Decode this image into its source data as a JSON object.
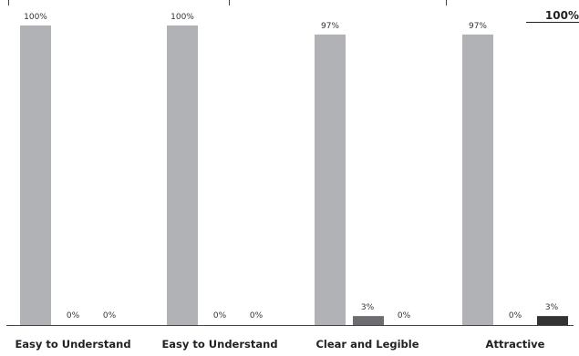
{
  "chart_data": {
    "type": "bar",
    "title": "",
    "xlabel": "",
    "ylabel": "",
    "ylim": [
      0,
      100
    ],
    "grid": false,
    "categories": [
      "Easy to Understand",
      "Easy to Understand",
      "Clear and Legible",
      "Attractive"
    ],
    "series": [
      {
        "values": [
          100,
          100,
          97,
          97
        ]
      },
      {
        "values": [
          0,
          0,
          3,
          0
        ]
      },
      {
        "values": [
          0,
          0,
          0,
          3
        ]
      }
    ],
    "data_labels": [
      [
        "100%",
        "0%",
        "0%"
      ],
      [
        "100%",
        "0%",
        "0%"
      ],
      [
        "97%",
        "3%",
        "0%"
      ],
      [
        "97%",
        "0%",
        "3%"
      ]
    ],
    "colors": [
      "#b1b2b5",
      "#6c6d70",
      "#333333"
    ],
    "corner_label": "100%"
  }
}
